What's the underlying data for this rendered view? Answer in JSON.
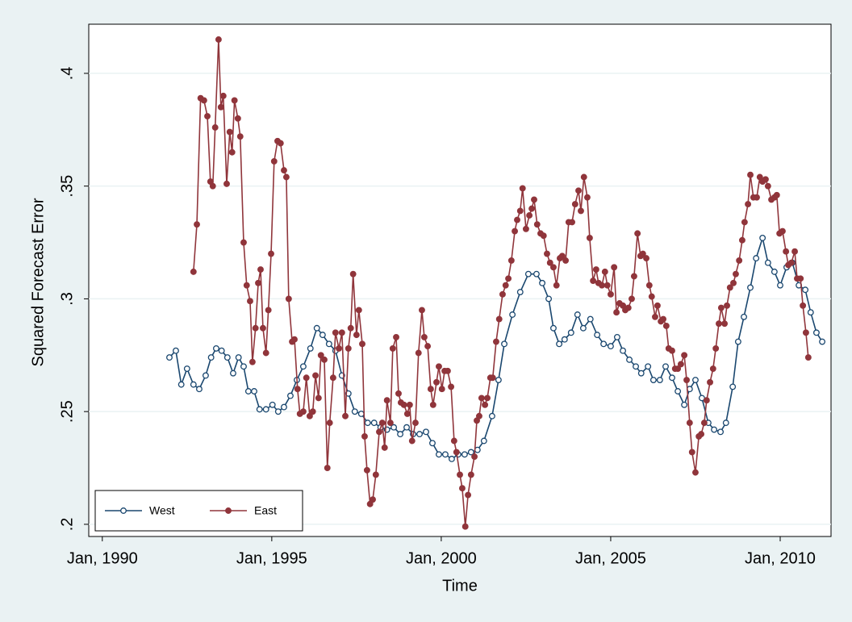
{
  "chart_data": {
    "type": "line",
    "x_label": "Time",
    "y_label": "Squared Forecast Error",
    "xlim": [
      1989.6,
      2011.5
    ],
    "ylim": [
      0.1946,
      0.4218
    ],
    "xticks": [
      {
        "value": 1990,
        "label": "Jan, 1990"
      },
      {
        "value": 1995,
        "label": "Jan, 1995"
      },
      {
        "value": 2000,
        "label": "Jan, 2000"
      },
      {
        "value": 2005,
        "label": "Jan, 2005"
      },
      {
        "value": 2010,
        "label": "Jan, 2010"
      }
    ],
    "yticks": [
      {
        "value": 0.2,
        "label": ".2"
      },
      {
        "value": 0.25,
        "label": ".25"
      },
      {
        "value": 0.3,
        "label": ".3"
      },
      {
        "value": 0.35,
        "label": ".35"
      },
      {
        "value": 0.4,
        "label": ".4"
      }
    ],
    "grid": true,
    "legend_position": "bottom-left",
    "series": [
      {
        "name": "West",
        "color": "#1a476f",
        "marker": "hollow",
        "x": [
          1991.98,
          1992.17,
          1992.33,
          1992.5,
          1992.69,
          1992.86,
          1993.05,
          1993.21,
          1993.36,
          1993.52,
          1993.69,
          1993.86,
          1994.02,
          1994.17,
          1994.31,
          1994.48,
          1994.64,
          1994.83,
          1995.02,
          1995.19,
          1995.36,
          1995.55,
          1995.74,
          1995.93,
          1996.14,
          1996.33,
          1996.5,
          1996.69,
          1996.88,
          1997.07,
          1997.26,
          1997.45,
          1997.64,
          1997.83,
          1998.02,
          1998.21,
          1998.4,
          1998.6,
          1998.79,
          1998.98,
          1999.17,
          1999.36,
          1999.55,
          1999.74,
          1999.93,
          2000.12,
          2000.31,
          2000.5,
          2000.69,
          2000.88,
          2001.07,
          2001.26,
          2001.5,
          2001.69,
          2001.86,
          2002.1,
          2002.33,
          2002.57,
          2002.81,
          2002.98,
          2003.17,
          2003.31,
          2003.48,
          2003.64,
          2003.83,
          2004.02,
          2004.19,
          2004.4,
          2004.6,
          2004.79,
          2005.0,
          2005.19,
          2005.36,
          2005.55,
          2005.74,
          2005.9,
          2006.1,
          2006.26,
          2006.45,
          2006.62,
          2006.81,
          2006.98,
          2007.17,
          2007.33,
          2007.5,
          2007.69,
          2007.88,
          2008.05,
          2008.24,
          2008.4,
          2008.6,
          2008.76,
          2008.93,
          2009.12,
          2009.29,
          2009.48,
          2009.64,
          2009.83,
          2010.0,
          2010.19,
          2010.36,
          2010.55,
          2010.74,
          2010.9,
          2011.07,
          2011.24
        ],
        "values": [
          0.274,
          0.277,
          0.262,
          0.269,
          0.262,
          0.26,
          0.266,
          0.274,
          0.278,
          0.277,
          0.274,
          0.267,
          0.274,
          0.27,
          0.259,
          0.259,
          0.251,
          0.251,
          0.253,
          0.25,
          0.252,
          0.257,
          0.264,
          0.27,
          0.278,
          0.287,
          0.284,
          0.28,
          0.277,
          0.266,
          0.258,
          0.25,
          0.249,
          0.245,
          0.245,
          0.243,
          0.242,
          0.243,
          0.24,
          0.243,
          0.24,
          0.24,
          0.241,
          0.236,
          0.231,
          0.231,
          0.229,
          0.231,
          0.231,
          0.232,
          0.233,
          0.237,
          0.248,
          0.264,
          0.28,
          0.293,
          0.303,
          0.311,
          0.311,
          0.307,
          0.3,
          0.287,
          0.28,
          0.282,
          0.285,
          0.293,
          0.287,
          0.291,
          0.284,
          0.28,
          0.279,
          0.283,
          0.277,
          0.273,
          0.27,
          0.267,
          0.27,
          0.264,
          0.264,
          0.27,
          0.265,
          0.259,
          0.253,
          0.26,
          0.264,
          0.256,
          0.245,
          0.242,
          0.241,
          0.245,
          0.261,
          0.281,
          0.292,
          0.305,
          0.318,
          0.327,
          0.316,
          0.312,
          0.306,
          0.314,
          0.316,
          0.306,
          0.304,
          0.294,
          0.285,
          0.281
        ]
      },
      {
        "name": "East",
        "color": "#90353b",
        "marker": "solid",
        "x": [
          1992.69,
          1992.79,
          1992.9,
          1993.0,
          1993.1,
          1993.19,
          1993.26,
          1993.33,
          1993.43,
          1993.5,
          1993.57,
          1993.67,
          1993.76,
          1993.83,
          1993.9,
          1994.0,
          1994.07,
          1994.17,
          1994.26,
          1994.36,
          1994.43,
          1994.52,
          1994.6,
          1994.67,
          1994.74,
          1994.83,
          1994.9,
          1994.98,
          1995.07,
          1995.17,
          1995.26,
          1995.36,
          1995.43,
          1995.5,
          1995.6,
          1995.67,
          1995.76,
          1995.83,
          1995.93,
          1996.02,
          1996.12,
          1996.21,
          1996.29,
          1996.38,
          1996.45,
          1996.55,
          1996.64,
          1996.71,
          1996.81,
          1996.88,
          1996.98,
          1997.07,
          1997.17,
          1997.26,
          1997.33,
          1997.4,
          1997.5,
          1997.57,
          1997.67,
          1997.74,
          1997.81,
          1997.9,
          1997.98,
          1998.07,
          1998.17,
          1998.26,
          1998.33,
          1998.4,
          1998.5,
          1998.57,
          1998.67,
          1998.74,
          1998.81,
          1998.9,
          1999.0,
          1999.07,
          1999.14,
          1999.24,
          1999.33,
          1999.43,
          1999.5,
          1999.6,
          1999.69,
          1999.76,
          1999.86,
          1999.93,
          2000.02,
          2000.1,
          2000.19,
          2000.29,
          2000.38,
          2000.45,
          2000.55,
          2000.62,
          2000.71,
          2000.79,
          2000.88,
          2000.98,
          2001.05,
          2001.12,
          2001.19,
          2001.29,
          2001.36,
          2001.45,
          2001.52,
          2001.62,
          2001.71,
          2001.81,
          2001.9,
          2001.98,
          2002.07,
          2002.17,
          2002.24,
          2002.33,
          2002.4,
          2002.5,
          2002.6,
          2002.67,
          2002.74,
          2002.83,
          2002.93,
          2003.02,
          2003.12,
          2003.21,
          2003.31,
          2003.4,
          2003.5,
          2003.57,
          2003.67,
          2003.76,
          2003.86,
          2003.95,
          2004.05,
          2004.12,
          2004.21,
          2004.31,
          2004.38,
          2004.48,
          2004.57,
          2004.64,
          2004.74,
          2004.83,
          2004.9,
          2005.0,
          2005.1,
          2005.17,
          2005.26,
          2005.36,
          2005.43,
          2005.52,
          2005.62,
          2005.69,
          2005.79,
          2005.88,
          2005.95,
          2006.05,
          2006.14,
          2006.21,
          2006.31,
          2006.38,
          2006.48,
          2006.55,
          2006.64,
          2006.71,
          2006.81,
          2006.9,
          2006.98,
          2007.07,
          2007.17,
          2007.24,
          2007.33,
          2007.4,
          2007.5,
          2007.6,
          2007.67,
          2007.76,
          2007.83,
          2007.93,
          2008.02,
          2008.1,
          2008.19,
          2008.26,
          2008.36,
          2008.43,
          2008.52,
          2008.62,
          2008.69,
          2008.79,
          2008.88,
          2008.95,
          2009.05,
          2009.12,
          2009.21,
          2009.31,
          2009.4,
          2009.48,
          2009.57,
          2009.64,
          2009.74,
          2009.83,
          2009.9,
          2009.98,
          2010.07,
          2010.17,
          2010.24,
          2010.33,
          2010.43,
          2010.5,
          2010.6,
          2010.67,
          2010.76,
          2010.83
        ],
        "values": [
          0.312,
          0.333,
          0.389,
          0.388,
          0.381,
          0.352,
          0.35,
          0.376,
          0.415,
          0.385,
          0.39,
          0.351,
          0.374,
          0.365,
          0.388,
          0.38,
          0.372,
          0.325,
          0.306,
          0.299,
          0.272,
          0.287,
          0.307,
          0.313,
          0.287,
          0.276,
          0.295,
          0.32,
          0.361,
          0.37,
          0.369,
          0.357,
          0.354,
          0.3,
          0.281,
          0.282,
          0.26,
          0.249,
          0.25,
          0.265,
          0.248,
          0.25,
          0.266,
          0.256,
          0.275,
          0.273,
          0.225,
          0.245,
          0.265,
          0.285,
          0.278,
          0.285,
          0.248,
          0.278,
          0.287,
          0.311,
          0.284,
          0.295,
          0.28,
          0.239,
          0.224,
          0.209,
          0.211,
          0.222,
          0.241,
          0.245,
          0.234,
          0.255,
          0.245,
          0.278,
          0.283,
          0.258,
          0.254,
          0.253,
          0.249,
          0.253,
          0.237,
          0.245,
          0.276,
          0.295,
          0.283,
          0.279,
          0.26,
          0.253,
          0.263,
          0.27,
          0.26,
          0.268,
          0.268,
          0.261,
          0.237,
          0.232,
          0.222,
          0.216,
          0.199,
          0.213,
          0.222,
          0.23,
          0.246,
          0.248,
          0.256,
          0.253,
          0.256,
          0.265,
          0.265,
          0.281,
          0.291,
          0.302,
          0.306,
          0.309,
          0.317,
          0.33,
          0.335,
          0.339,
          0.349,
          0.331,
          0.337,
          0.34,
          0.344,
          0.333,
          0.329,
          0.328,
          0.32,
          0.316,
          0.314,
          0.306,
          0.318,
          0.319,
          0.317,
          0.334,
          0.334,
          0.342,
          0.348,
          0.339,
          0.354,
          0.345,
          0.327,
          0.308,
          0.313,
          0.307,
          0.306,
          0.312,
          0.306,
          0.302,
          0.314,
          0.294,
          0.298,
          0.297,
          0.295,
          0.296,
          0.3,
          0.31,
          0.329,
          0.319,
          0.32,
          0.318,
          0.306,
          0.301,
          0.292,
          0.297,
          0.29,
          0.291,
          0.288,
          0.278,
          0.277,
          0.269,
          0.269,
          0.271,
          0.275,
          0.264,
          0.245,
          0.232,
          0.223,
          0.239,
          0.24,
          0.245,
          0.255,
          0.263,
          0.269,
          0.278,
          0.289,
          0.296,
          0.289,
          0.297,
          0.305,
          0.307,
          0.311,
          0.317,
          0.326,
          0.334,
          0.342,
          0.355,
          0.345,
          0.345,
          0.354,
          0.352,
          0.353,
          0.35,
          0.344,
          0.345,
          0.346,
          0.329,
          0.33,
          0.321,
          0.315,
          0.316,
          0.321,
          0.309,
          0.309,
          0.297,
          0.285,
          0.274
        ]
      }
    ]
  }
}
